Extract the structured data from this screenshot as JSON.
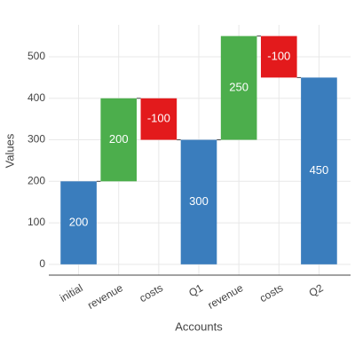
{
  "chart_data": {
    "type": "waterfall",
    "x_label": "Accounts",
    "y_label": "Values",
    "categories": [
      "initial",
      "revenue",
      "costs",
      "Q1",
      "revenue",
      "costs",
      "Q2"
    ],
    "measure": [
      "absolute",
      "relative",
      "relative",
      "total",
      "relative",
      "relative",
      "total"
    ],
    "values": [
      200,
      200,
      -100,
      300,
      250,
      -100,
      450
    ],
    "colors": {
      "increasing": "#4cae4c",
      "decreasing": "#e31a1c",
      "total": "#3a7dbd"
    },
    "ylim": [
      -26,
      577
    ],
    "yticks": [
      0,
      100,
      200,
      300,
      400,
      500
    ],
    "grid": true
  }
}
